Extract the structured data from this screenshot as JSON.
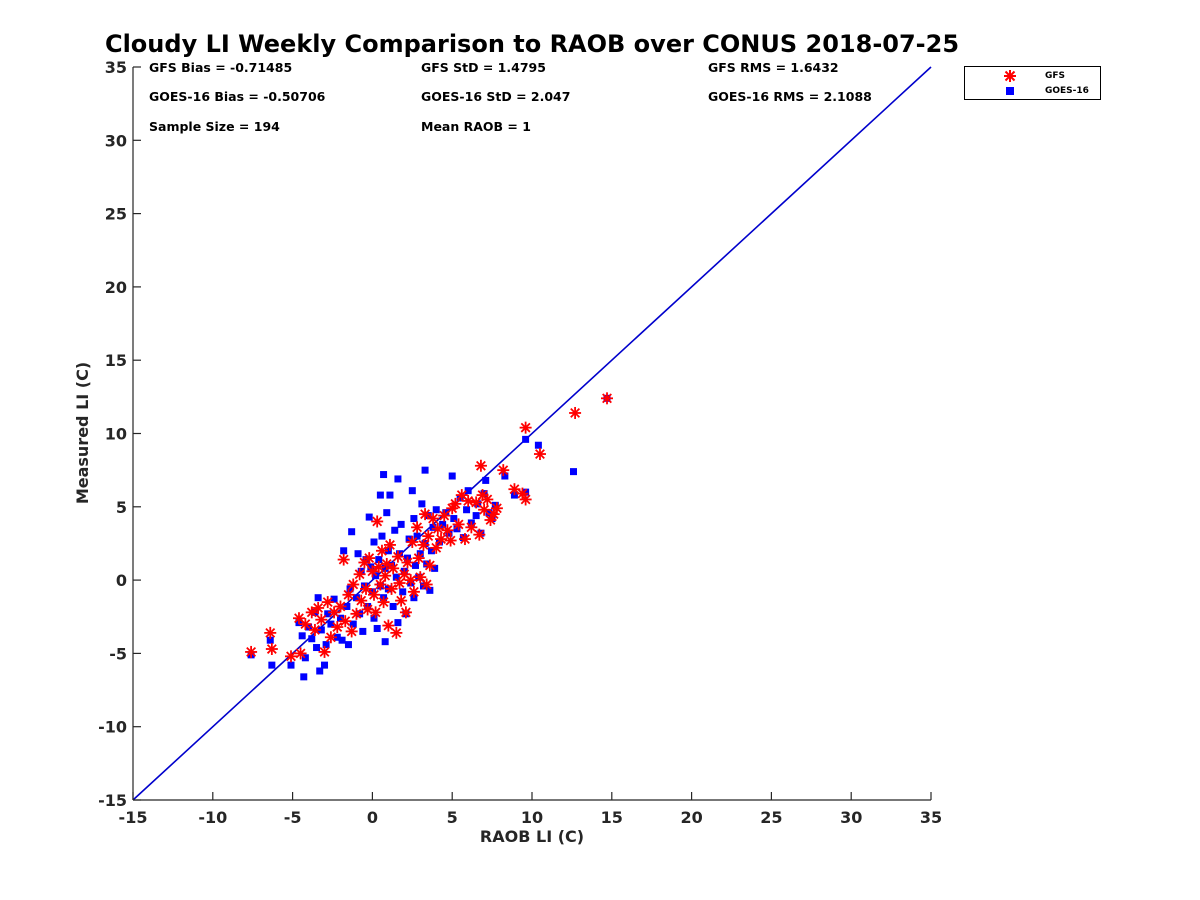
{
  "chart_data": {
    "type": "scatter",
    "title": "Cloudy LI Weekly Comparison to RAOB over CONUS 2018-07-25",
    "xlabel": "RAOB LI (C)",
    "ylabel": "Measured LI (C)",
    "xlim": [
      -15,
      35
    ],
    "ylim": [
      -15,
      35
    ],
    "xticks": [
      "-15",
      "-10",
      "-5",
      "0",
      "5",
      "10",
      "15",
      "20",
      "25",
      "30",
      "35"
    ],
    "yticks": [
      "-15",
      "-10",
      "-5",
      "0",
      "5",
      "10",
      "15",
      "20",
      "25",
      "30",
      "35"
    ],
    "grid": false,
    "legend_position": "outside-top-right",
    "reference_line": {
      "from": [
        -15,
        -15
      ],
      "to": [
        35,
        35
      ],
      "color": "#0000cc"
    },
    "stats": [
      "GFS Bias = -0.71485",
      "GFS StD = 1.4795",
      "GFS RMS = 1.6432",
      "GOES-16 Bias = -0.50706",
      "GOES-16 StD = 2.047",
      "GOES-16 RMS = 2.1088",
      "Sample Size = 194",
      "Mean RAOB = 1"
    ],
    "series": [
      {
        "name": "GFS",
        "marker": "asterisk",
        "color": "#ff0000",
        "points": [
          [
            -7.6,
            -4.9
          ],
          [
            -6.4,
            -3.6
          ],
          [
            -6.3,
            -4.7
          ],
          [
            -5.1,
            -5.2
          ],
          [
            -4.6,
            -2.6
          ],
          [
            -4.5,
            -5.0
          ],
          [
            -4.2,
            -3.0
          ],
          [
            -3.8,
            -2.2
          ],
          [
            -3.6,
            -3.4
          ],
          [
            -3.4,
            -1.9
          ],
          [
            -3.2,
            -2.7
          ],
          [
            -3.0,
            -4.9
          ],
          [
            -2.8,
            -1.5
          ],
          [
            -2.6,
            -3.9
          ],
          [
            -2.4,
            -2.2
          ],
          [
            -2.2,
            -3.2
          ],
          [
            -2.0,
            -1.8
          ],
          [
            -1.8,
            1.4
          ],
          [
            -1.7,
            -2.8
          ],
          [
            -1.5,
            -1.0
          ],
          [
            -1.3,
            -3.5
          ],
          [
            -1.2,
            -0.3
          ],
          [
            -1.0,
            -2.3
          ],
          [
            -0.8,
            0.4
          ],
          [
            -0.7,
            -1.4
          ],
          [
            -0.5,
            1.2
          ],
          [
            -0.4,
            -0.6
          ],
          [
            -0.3,
            -2.0
          ],
          [
            -0.2,
            1.5
          ],
          [
            0.0,
            0.6
          ],
          [
            0.1,
            -1.0
          ],
          [
            0.2,
            -2.2
          ],
          [
            0.3,
            4.0
          ],
          [
            0.4,
            0.9
          ],
          [
            0.5,
            -0.3
          ],
          [
            0.6,
            2.0
          ],
          [
            0.7,
            -1.5
          ],
          [
            0.8,
            0.3
          ],
          [
            0.9,
            1.1
          ],
          [
            1.0,
            -3.1
          ],
          [
            1.1,
            2.4
          ],
          [
            1.2,
            -0.6
          ],
          [
            1.3,
            0.8
          ],
          [
            1.5,
            -3.6
          ],
          [
            1.6,
            1.6
          ],
          [
            1.7,
            -0.2
          ],
          [
            1.8,
            -1.4
          ],
          [
            2.0,
            0.4
          ],
          [
            2.1,
            -2.2
          ],
          [
            2.2,
            1.2
          ],
          [
            2.4,
            0.0
          ],
          [
            2.5,
            2.6
          ],
          [
            2.6,
            -0.8
          ],
          [
            2.8,
            3.6
          ],
          [
            2.9,
            1.5
          ],
          [
            3.0,
            0.2
          ],
          [
            3.2,
            2.4
          ],
          [
            3.3,
            4.5
          ],
          [
            3.4,
            -0.3
          ],
          [
            3.5,
            3.0
          ],
          [
            3.6,
            1.0
          ],
          [
            3.8,
            4.2
          ],
          [
            4.0,
            2.2
          ],
          [
            4.1,
            3.5
          ],
          [
            4.3,
            2.8
          ],
          [
            4.5,
            4.4
          ],
          [
            4.7,
            3.4
          ],
          [
            4.9,
            2.7
          ],
          [
            5.0,
            4.9
          ],
          [
            5.2,
            5.2
          ],
          [
            5.4,
            3.8
          ],
          [
            5.6,
            5.8
          ],
          [
            5.8,
            2.8
          ],
          [
            6.0,
            5.4
          ],
          [
            6.2,
            3.6
          ],
          [
            6.5,
            5.3
          ],
          [
            6.7,
            3.1
          ],
          [
            6.8,
            7.8
          ],
          [
            6.9,
            5.8
          ],
          [
            7.0,
            4.8
          ],
          [
            7.2,
            5.5
          ],
          [
            7.4,
            4.1
          ],
          [
            7.6,
            4.5
          ],
          [
            7.8,
            4.9
          ],
          [
            8.2,
            7.5
          ],
          [
            8.9,
            6.2
          ],
          [
            9.4,
            5.9
          ],
          [
            9.6,
            5.5
          ],
          [
            9.6,
            10.4
          ],
          [
            10.5,
            8.6
          ],
          [
            12.7,
            11.4
          ],
          [
            14.7,
            12.4
          ]
        ]
      },
      {
        "name": "GOES-16",
        "marker": "square",
        "color": "#0000ff",
        "points": [
          [
            -7.6,
            -5.1
          ],
          [
            -6.4,
            -4.1
          ],
          [
            -6.3,
            -5.8
          ],
          [
            -5.1,
            -5.8
          ],
          [
            -4.6,
            -2.9
          ],
          [
            -4.4,
            -3.8
          ],
          [
            -4.3,
            -6.6
          ],
          [
            -4.2,
            -5.3
          ],
          [
            -4.0,
            -3.2
          ],
          [
            -3.8,
            -4.0
          ],
          [
            -3.6,
            -2.2
          ],
          [
            -3.5,
            -4.6
          ],
          [
            -3.4,
            -1.2
          ],
          [
            -3.3,
            -6.2
          ],
          [
            -3.2,
            -3.4
          ],
          [
            -3.0,
            -5.8
          ],
          [
            -2.9,
            -4.4
          ],
          [
            -2.8,
            -2.3
          ],
          [
            -2.6,
            -3.0
          ],
          [
            -2.4,
            -1.3
          ],
          [
            -2.2,
            -3.9
          ],
          [
            -2.0,
            -2.6
          ],
          [
            -1.9,
            -4.1
          ],
          [
            -1.8,
            2.0
          ],
          [
            -1.6,
            -1.8
          ],
          [
            -1.5,
            -4.4
          ],
          [
            -1.4,
            -0.6
          ],
          [
            -1.3,
            3.3
          ],
          [
            -1.2,
            -3.0
          ],
          [
            -1.0,
            -1.2
          ],
          [
            -0.9,
            1.8
          ],
          [
            -0.8,
            -2.3
          ],
          [
            -0.7,
            0.6
          ],
          [
            -0.6,
            -3.5
          ],
          [
            -0.5,
            -0.4
          ],
          [
            -0.4,
            1.4
          ],
          [
            -0.3,
            -1.8
          ],
          [
            -0.2,
            4.3
          ],
          [
            -0.1,
            0.9
          ],
          [
            0.0,
            -0.8
          ],
          [
            0.1,
            2.6
          ],
          [
            0.1,
            -2.6
          ],
          [
            0.2,
            0.3
          ],
          [
            0.3,
            -3.3
          ],
          [
            0.4,
            1.4
          ],
          [
            0.5,
            5.8
          ],
          [
            0.5,
            -0.4
          ],
          [
            0.6,
            3.0
          ],
          [
            0.7,
            -1.2
          ],
          [
            0.7,
            7.2
          ],
          [
            0.8,
            0.8
          ],
          [
            0.8,
            -4.2
          ],
          [
            0.9,
            4.6
          ],
          [
            1.0,
            2.0
          ],
          [
            1.0,
            -0.6
          ],
          [
            1.1,
            5.8
          ],
          [
            1.2,
            1.0
          ],
          [
            1.3,
            -1.8
          ],
          [
            1.4,
            3.4
          ],
          [
            1.5,
            0.2
          ],
          [
            1.6,
            6.9
          ],
          [
            1.6,
            -2.9
          ],
          [
            1.7,
            1.8
          ],
          [
            1.8,
            3.8
          ],
          [
            1.9,
            -0.8
          ],
          [
            2.0,
            0.6
          ],
          [
            2.1,
            -2.3
          ],
          [
            2.2,
            1.5
          ],
          [
            2.3,
            2.8
          ],
          [
            2.4,
            -0.2
          ],
          [
            2.5,
            6.1
          ],
          [
            2.6,
            4.2
          ],
          [
            2.6,
            -1.2
          ],
          [
            2.7,
            1.0
          ],
          [
            2.8,
            3.0
          ],
          [
            2.9,
            0.2
          ],
          [
            3.0,
            1.8
          ],
          [
            3.1,
            5.2
          ],
          [
            3.2,
            -0.4
          ],
          [
            3.3,
            7.5
          ],
          [
            3.3,
            2.5
          ],
          [
            3.4,
            1.1
          ],
          [
            3.5,
            4.4
          ],
          [
            3.6,
            -0.7
          ],
          [
            3.7,
            2.0
          ],
          [
            3.8,
            3.6
          ],
          [
            3.9,
            0.8
          ],
          [
            4.0,
            4.8
          ],
          [
            4.2,
            2.6
          ],
          [
            4.4,
            3.8
          ],
          [
            4.6,
            4.6
          ],
          [
            4.8,
            3.2
          ],
          [
            5.0,
            7.1
          ],
          [
            5.1,
            4.2
          ],
          [
            5.3,
            3.5
          ],
          [
            5.5,
            5.6
          ],
          [
            5.7,
            2.9
          ],
          [
            5.9,
            4.8
          ],
          [
            6.0,
            6.1
          ],
          [
            6.2,
            3.9
          ],
          [
            6.5,
            4.4
          ],
          [
            6.6,
            5.2
          ],
          [
            6.8,
            3.2
          ],
          [
            7.0,
            5.9
          ],
          [
            7.1,
            6.8
          ],
          [
            7.3,
            4.6
          ],
          [
            7.5,
            4.2
          ],
          [
            7.7,
            5.1
          ],
          [
            8.3,
            7.1
          ],
          [
            8.9,
            5.8
          ],
          [
            9.6,
            6.0
          ],
          [
            9.6,
            9.6
          ],
          [
            10.4,
            9.2
          ],
          [
            12.6,
            7.4
          ],
          [
            14.7,
            12.4
          ]
        ]
      }
    ]
  }
}
